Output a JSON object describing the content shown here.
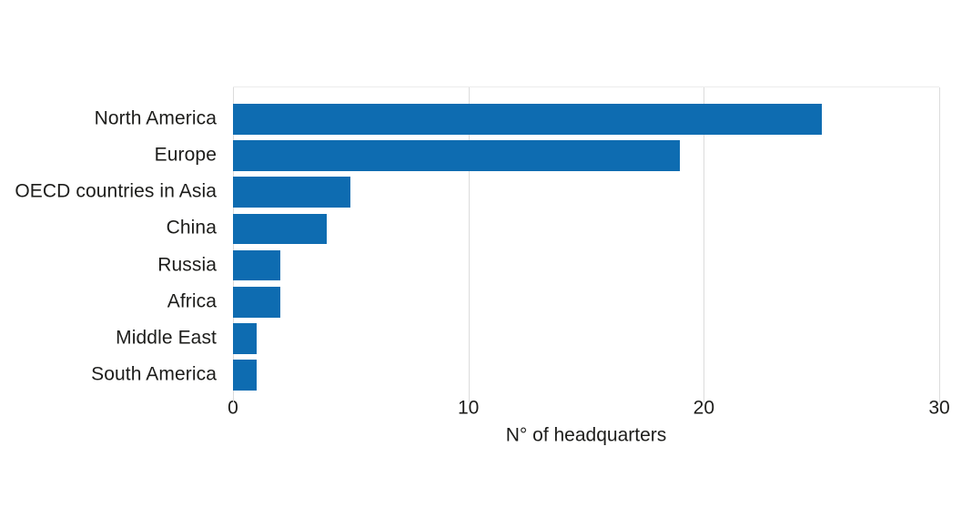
{
  "chart_data": {
    "type": "bar",
    "orientation": "horizontal",
    "title": "",
    "xlabel": "N° of headquarters",
    "ylabel": "",
    "categories": [
      "North America",
      "Europe",
      "OECD countries in Asia",
      "China",
      "Russia",
      "Africa",
      "Middle East",
      "South America"
    ],
    "values": [
      25,
      19,
      5,
      4,
      2,
      2,
      1,
      1
    ],
    "xlim": [
      0,
      30
    ],
    "xticks": [
      0,
      10,
      20,
      30
    ],
    "grid": "vertical gridlines at x ticks, light gray",
    "legend": "none",
    "colors": {
      "bar": "#0e6cb1",
      "gridline": "#dcdcdc",
      "text": "#1d1d1b",
      "background": "#ffffff"
    }
  }
}
